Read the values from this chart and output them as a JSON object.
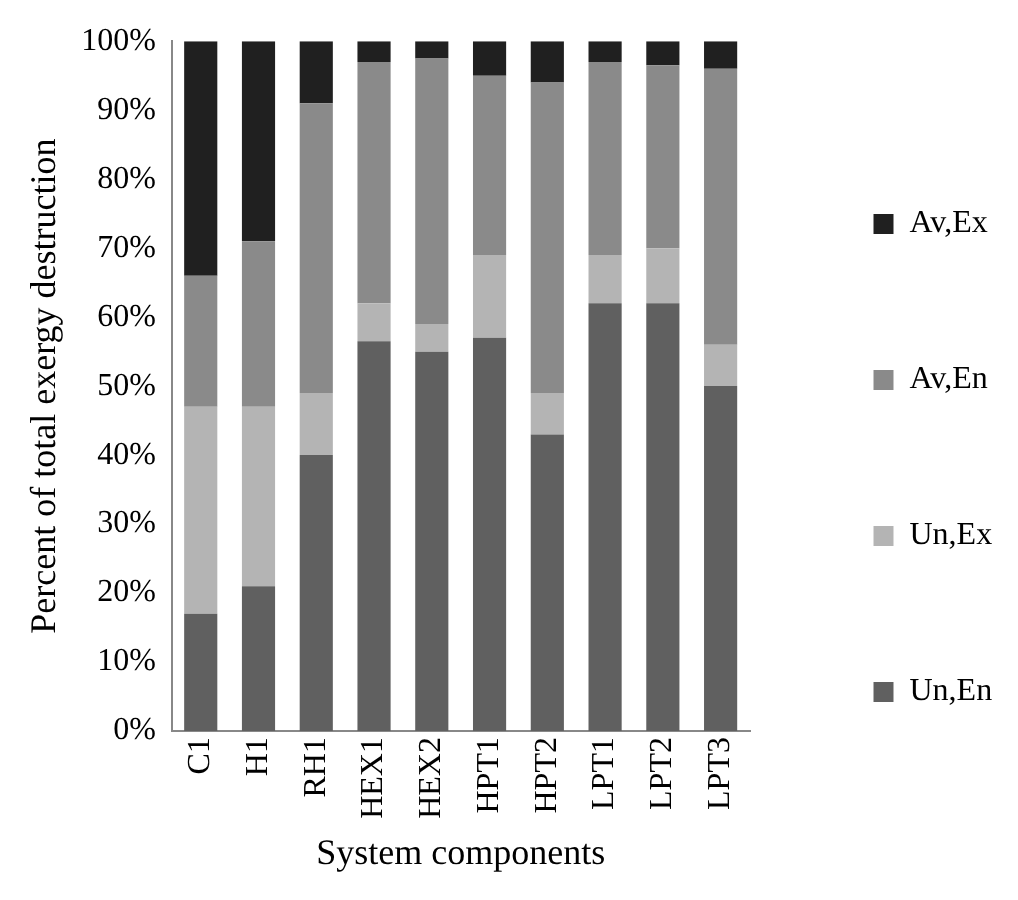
{
  "chart_data": {
    "type": "bar",
    "stacked": true,
    "xlabel": "System components",
    "ylabel": "Percent of total exergy destruction",
    "categories": [
      "C1",
      "H1",
      "RH1",
      "HEX1",
      "HEX2",
      "HPT1",
      "HPT2",
      "LPT1",
      "LPT2",
      "LPT3"
    ],
    "series": [
      {
        "name": "Un,En",
        "color": "#606060",
        "values": [
          17,
          21,
          40,
          56.5,
          55,
          57,
          43,
          62,
          62,
          50
        ]
      },
      {
        "name": "Un,Ex",
        "color": "#b4b4b4",
        "values": [
          30,
          26,
          9,
          5.5,
          4,
          12,
          6,
          7,
          8,
          6
        ]
      },
      {
        "name": "Av,En",
        "color": "#8a8a8a",
        "values": [
          19,
          24,
          42,
          35,
          38.5,
          26,
          45,
          28,
          26.5,
          40
        ]
      },
      {
        "name": "Av,Ex",
        "color": "#202020",
        "values": [
          34,
          29,
          9,
          3,
          2.5,
          5,
          6,
          3,
          3.5,
          4
        ]
      }
    ],
    "ylim": [
      0,
      100
    ],
    "yticks": [
      {
        "value": 0,
        "label": "0%"
      },
      {
        "value": 10,
        "label": "10%"
      },
      {
        "value": 20,
        "label": "20%"
      },
      {
        "value": 30,
        "label": "30%"
      },
      {
        "value": 40,
        "label": "40%"
      },
      {
        "value": 50,
        "label": "50%"
      },
      {
        "value": 60,
        "label": "60%"
      },
      {
        "value": 70,
        "label": "70%"
      },
      {
        "value": 80,
        "label": "80%"
      },
      {
        "value": 90,
        "label": "90%"
      },
      {
        "value": 100,
        "label": "100%"
      }
    ],
    "grid": false,
    "legend": "right"
  }
}
